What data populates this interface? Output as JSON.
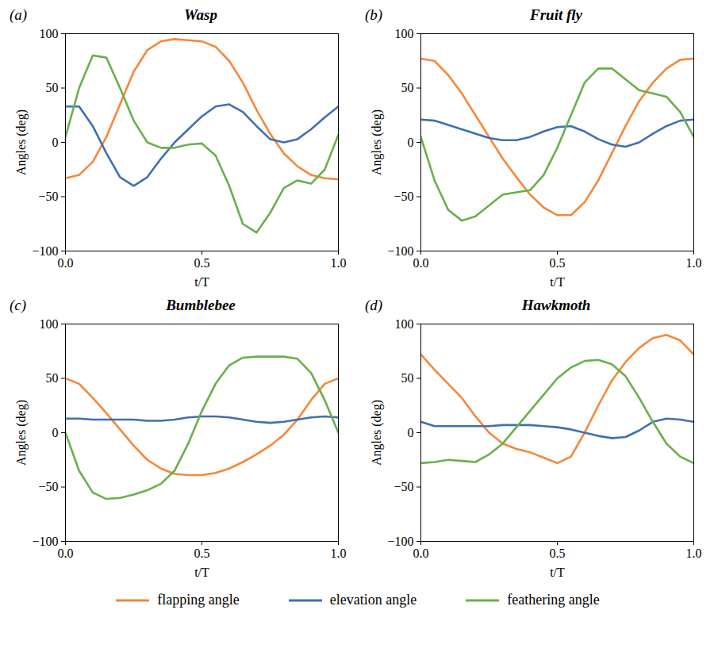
{
  "chart_data": [
    {
      "type": "line",
      "panel": "(a)",
      "title": "Wasp",
      "x_label": "t/T",
      "y_label": "Angles (deg)",
      "legend": "bottom",
      "xlim": [
        0,
        1
      ],
      "xticks": [
        {
          "value": 0,
          "label": "0.0"
        },
        {
          "value": 0.5,
          "label": "0.5"
        },
        {
          "value": 1,
          "label": "1.0"
        }
      ],
      "ylim": [
        -100,
        100
      ],
      "yticks": [
        -100,
        -50,
        0,
        50,
        100
      ],
      "x": [
        0,
        0.05,
        0.1,
        0.15,
        0.2,
        0.25,
        0.3,
        0.35,
        0.4,
        0.45,
        0.5,
        0.55,
        0.6,
        0.65,
        0.7,
        0.75,
        0.8,
        0.85,
        0.9,
        0.95,
        1.0
      ],
      "series": [
        {
          "name": "flapping angle",
          "color": "#f5883b",
          "values": [
            -33,
            -30,
            -18,
            5,
            35,
            65,
            85,
            93,
            95,
            94,
            93,
            88,
            75,
            55,
            30,
            8,
            -10,
            -22,
            -30,
            -33,
            -34
          ]
        },
        {
          "name": "elevation angle",
          "color": "#3f6fb5",
          "values": [
            33,
            33,
            15,
            -10,
            -32,
            -40,
            -32,
            -15,
            0,
            12,
            24,
            33,
            35,
            28,
            15,
            3,
            0,
            3,
            12,
            23,
            33
          ]
        },
        {
          "name": "feathering angle",
          "color": "#6ab04c",
          "values": [
            5,
            50,
            80,
            78,
            50,
            20,
            0,
            -5,
            -5,
            -2,
            -1,
            -12,
            -40,
            -75,
            -83,
            -65,
            -42,
            -35,
            -38,
            -25,
            7
          ]
        }
      ]
    },
    {
      "type": "line",
      "panel": "(b)",
      "title": "Fruit fly",
      "x_label": "t/T",
      "y_label": "Angles (deg)",
      "legend": "bottom",
      "xlim": [
        0,
        1
      ],
      "xticks": [
        {
          "value": 0,
          "label": "0.0"
        },
        {
          "value": 0.5,
          "label": "0.5"
        },
        {
          "value": 1,
          "label": "1.0"
        }
      ],
      "ylim": [
        -100,
        100
      ],
      "yticks": [
        -100,
        -50,
        0,
        50,
        100
      ],
      "x": [
        0,
        0.05,
        0.1,
        0.15,
        0.2,
        0.25,
        0.3,
        0.35,
        0.4,
        0.45,
        0.5,
        0.55,
        0.6,
        0.65,
        0.7,
        0.75,
        0.8,
        0.85,
        0.9,
        0.95,
        1.0
      ],
      "series": [
        {
          "name": "flapping angle",
          "color": "#f5883b",
          "values": [
            77,
            75,
            62,
            45,
            25,
            5,
            -15,
            -32,
            -48,
            -60,
            -67,
            -67,
            -55,
            -35,
            -10,
            15,
            38,
            55,
            68,
            76,
            77
          ]
        },
        {
          "name": "elevation angle",
          "color": "#3f6fb5",
          "values": [
            21,
            20,
            16,
            12,
            8,
            4,
            2,
            2,
            5,
            10,
            14,
            15,
            10,
            3,
            -2,
            -4,
            0,
            8,
            15,
            20,
            21
          ]
        },
        {
          "name": "feathering angle",
          "color": "#6ab04c",
          "values": [
            5,
            -35,
            -62,
            -72,
            -68,
            -58,
            -48,
            -46,
            -44,
            -30,
            -5,
            25,
            55,
            68,
            68,
            58,
            48,
            45,
            42,
            28,
            5
          ]
        }
      ]
    },
    {
      "type": "line",
      "panel": "(c)",
      "title": "Bumblebee",
      "x_label": "t/T",
      "y_label": "Angles (deg)",
      "legend": "bottom",
      "xlim": [
        0,
        1
      ],
      "xticks": [
        {
          "value": 0,
          "label": "0.0"
        },
        {
          "value": 0.5,
          "label": "0.5"
        },
        {
          "value": 1,
          "label": "1.0"
        }
      ],
      "ylim": [
        -100,
        100
      ],
      "yticks": [
        -100,
        -50,
        0,
        50,
        100
      ],
      "x": [
        0,
        0.05,
        0.1,
        0.15,
        0.2,
        0.25,
        0.3,
        0.35,
        0.4,
        0.45,
        0.5,
        0.55,
        0.6,
        0.65,
        0.7,
        0.75,
        0.8,
        0.85,
        0.9,
        0.95,
        1.0
      ],
      "series": [
        {
          "name": "flapping angle",
          "color": "#f5883b",
          "values": [
            50,
            45,
            32,
            18,
            3,
            -12,
            -25,
            -33,
            -38,
            -39,
            -39,
            -37,
            -33,
            -27,
            -20,
            -12,
            -2,
            12,
            30,
            45,
            50
          ]
        },
        {
          "name": "elevation angle",
          "color": "#3f6fb5",
          "values": [
            13,
            13,
            12,
            12,
            12,
            12,
            11,
            11,
            12,
            14,
            15,
            15,
            14,
            12,
            10,
            9,
            10,
            12,
            14,
            15,
            14
          ]
        },
        {
          "name": "feathering angle",
          "color": "#6ab04c",
          "values": [
            0,
            -35,
            -55,
            -61,
            -60,
            -57,
            -53,
            -47,
            -35,
            -10,
            20,
            45,
            62,
            69,
            70,
            70,
            70,
            68,
            55,
            30,
            0
          ]
        }
      ]
    },
    {
      "type": "line",
      "panel": "(d)",
      "title": "Hawkmoth",
      "x_label": "t/T",
      "y_label": "Angles (deg)",
      "legend": "bottom",
      "xlim": [
        0,
        1
      ],
      "xticks": [
        {
          "value": 0,
          "label": "0.0"
        },
        {
          "value": 0.5,
          "label": "0.5"
        },
        {
          "value": 1,
          "label": "1.0"
        }
      ],
      "ylim": [
        -100,
        100
      ],
      "yticks": [
        -100,
        -50,
        0,
        50,
        100
      ],
      "x": [
        0,
        0.05,
        0.1,
        0.15,
        0.2,
        0.25,
        0.3,
        0.35,
        0.4,
        0.45,
        0.5,
        0.55,
        0.6,
        0.65,
        0.7,
        0.75,
        0.8,
        0.85,
        0.9,
        0.95,
        1.0
      ],
      "series": [
        {
          "name": "flapping angle",
          "color": "#f5883b",
          "values": [
            72,
            58,
            45,
            32,
            15,
            0,
            -10,
            -15,
            -18,
            -23,
            -28,
            -22,
            0,
            25,
            48,
            65,
            78,
            87,
            90,
            85,
            72
          ]
        },
        {
          "name": "elevation angle",
          "color": "#3f6fb5",
          "values": [
            10,
            6,
            6,
            6,
            6,
            6,
            7,
            7,
            7,
            6,
            5,
            3,
            0,
            -3,
            -5,
            -4,
            2,
            10,
            13,
            12,
            10
          ]
        },
        {
          "name": "feathering angle",
          "color": "#6ab04c",
          "values": [
            -28,
            -27,
            -25,
            -26,
            -27,
            -20,
            -10,
            5,
            20,
            35,
            50,
            60,
            66,
            67,
            63,
            52,
            32,
            10,
            -10,
            -22,
            -28
          ]
        }
      ]
    }
  ]
}
